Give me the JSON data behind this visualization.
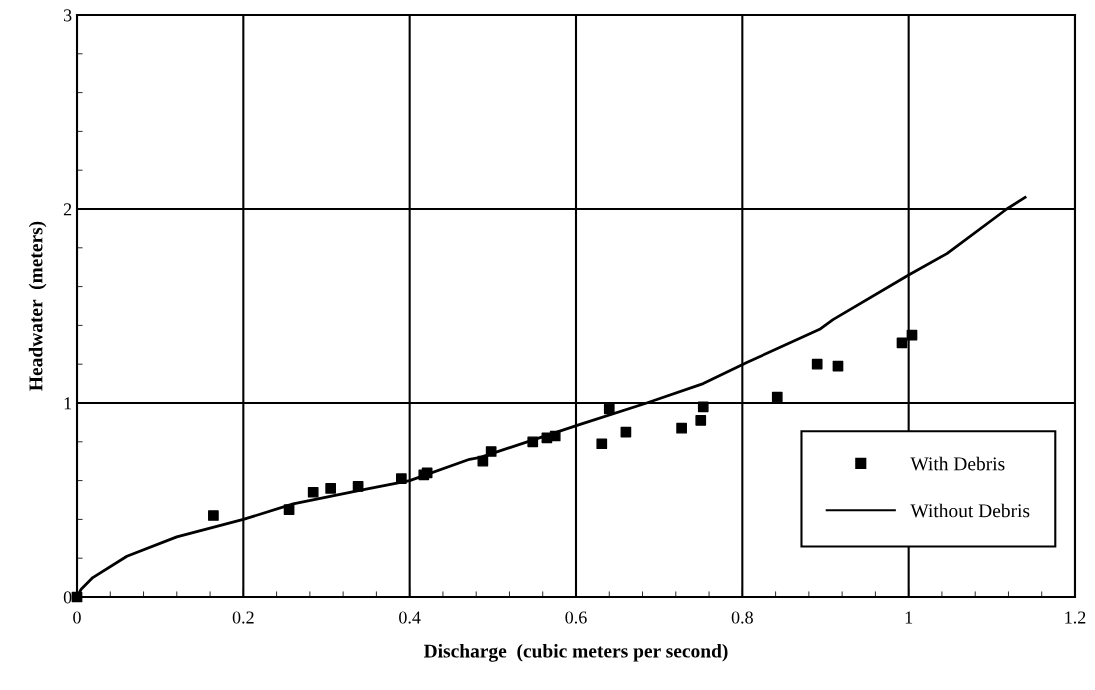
{
  "chart_data": {
    "type": "scatter",
    "xlabel": "Discharge  (cubic meters per second)",
    "ylabel": "Headwater  (meters)",
    "xlim": [
      0,
      1.2
    ],
    "xticks": [
      0,
      0.2,
      0.4,
      0.6,
      0.8,
      1,
      1.2
    ],
    "ylim": [
      0,
      3
    ],
    "yticks": [
      0,
      1,
      2,
      3
    ],
    "grid": true,
    "legend": "bottom right",
    "series": [
      {
        "name": "With Debris",
        "marker": "square",
        "color": "#000000",
        "x": [
          0,
          0.164,
          0.255,
          0.284,
          0.305,
          0.338,
          0.39,
          0.417,
          0.421,
          0.488,
          0.498,
          0.548,
          0.565,
          0.575,
          0.631,
          0.64,
          0.66,
          0.727,
          0.75,
          0.753,
          0.842,
          0.89,
          0.915,
          0.992,
          1.004
        ],
        "values": [
          0,
          0.42,
          0.45,
          0.54,
          0.56,
          0.57,
          0.61,
          0.63,
          0.64,
          0.7,
          0.75,
          0.8,
          0.82,
          0.83,
          0.79,
          0.97,
          0.85,
          0.87,
          0.91,
          0.98,
          1.03,
          1.2,
          1.19,
          1.31,
          1.35
        ]
      },
      {
        "name": "Without Debris",
        "type": "line",
        "marker": "none",
        "line_style": "solid",
        "color": "#000000",
        "x": [
          0,
          0.005,
          0.019,
          0.06,
          0.12,
          0.2,
          0.26,
          0.34,
          0.4,
          0.472,
          0.485,
          0.605,
          0.685,
          0.753,
          0.806,
          0.893,
          0.909,
          1.0,
          1.046,
          1.118,
          1.14
        ],
        "values": [
          0,
          0.04,
          0.1,
          0.21,
          0.31,
          0.4,
          0.48,
          0.55,
          0.6,
          0.71,
          0.72,
          0.89,
          1.0,
          1.1,
          1.21,
          1.38,
          1.43,
          1.66,
          1.77,
          2.0,
          2.06
        ]
      }
    ]
  }
}
